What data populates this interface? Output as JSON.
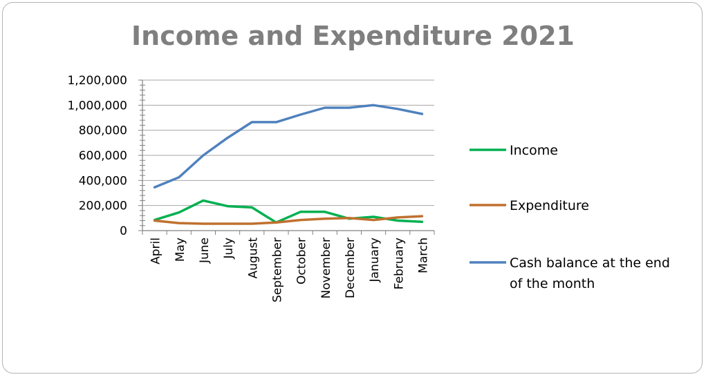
{
  "chart_data": {
    "type": "line",
    "title": "Income and Expenditure 2021",
    "xlabel": "",
    "ylabel": "",
    "categories": [
      "April",
      "May",
      "June",
      "July",
      "August",
      "September",
      "October",
      "November",
      "December",
      "January",
      "February",
      "March"
    ],
    "ylim": [
      0,
      1200000
    ],
    "yticks": [
      0,
      200000,
      400000,
      600000,
      800000,
      1000000,
      1200000
    ],
    "ytick_labels": [
      "0",
      "200,000",
      "400,000",
      "600,000",
      "800,000",
      "1,000,000",
      "1,200,000"
    ],
    "grid": true,
    "legend_position": "right",
    "series": [
      {
        "name": "Income",
        "color": "#00b050",
        "values": [
          85000,
          145000,
          240000,
          195000,
          185000,
          65000,
          150000,
          150000,
          95000,
          110000,
          80000,
          70000
        ]
      },
      {
        "name": "Expenditure",
        "color": "#c0702f",
        "values": [
          80000,
          60000,
          55000,
          55000,
          55000,
          65000,
          85000,
          95000,
          100000,
          85000,
          105000,
          115000
        ]
      },
      {
        "name": "Cash balance at the end of the month",
        "color": "#4f81bd",
        "values": [
          345000,
          425000,
          600000,
          740000,
          865000,
          865000,
          925000,
          980000,
          980000,
          1000000,
          970000,
          930000
        ]
      }
    ]
  }
}
